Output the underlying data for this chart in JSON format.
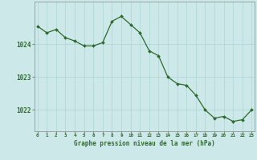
{
  "x": [
    0,
    1,
    2,
    3,
    4,
    5,
    6,
    7,
    8,
    9,
    10,
    11,
    12,
    13,
    14,
    15,
    16,
    17,
    18,
    19,
    20,
    21,
    22,
    23
  ],
  "y": [
    1024.55,
    1024.35,
    1024.45,
    1024.2,
    1024.1,
    1023.95,
    1023.95,
    1024.05,
    1024.7,
    1024.85,
    1024.6,
    1024.35,
    1023.8,
    1023.65,
    1023.0,
    1022.8,
    1022.75,
    1022.45,
    1022.0,
    1021.75,
    1021.8,
    1021.65,
    1021.7,
    1022.0
  ],
  "line_color": "#2d6a2d",
  "marker_color": "#2d6a2d",
  "bg_color": "#cce8e8",
  "grid_color": "#aad4d4",
  "xlabel": "Graphe pression niveau de la mer (hPa)",
  "yticks": [
    1022,
    1023,
    1024
  ],
  "xticks": [
    0,
    1,
    2,
    3,
    4,
    5,
    6,
    7,
    8,
    9,
    10,
    11,
    12,
    13,
    14,
    15,
    16,
    17,
    18,
    19,
    20,
    21,
    22,
    23
  ],
  "ylim": [
    1021.35,
    1025.3
  ],
  "xlim": [
    -0.3,
    23.3
  ],
  "font_color": "#2d6a2d"
}
